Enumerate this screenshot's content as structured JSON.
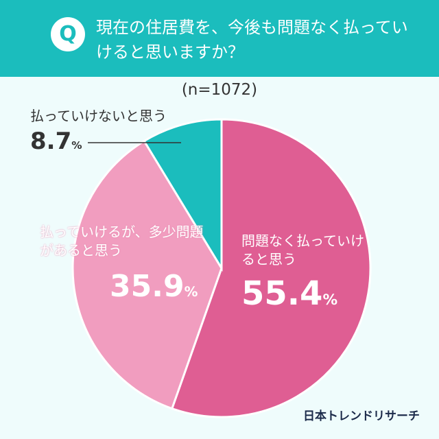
{
  "header": {
    "badge": "Q",
    "title": "現在の住居費を、今後も問題なく払っていけると思いますか？"
  },
  "sample": "(n=1072)",
  "chart_data": {
    "type": "pie",
    "title": "現在の住居費を、今後も問題なく払っていけると思いますか？",
    "subtitle": "(n=1072)",
    "start": "12 o'clock, clockwise",
    "slices": [
      {
        "label": "問題なく払っていけると思う",
        "value": 55.4,
        "display": "55.4",
        "color": "#df5e93"
      },
      {
        "label": "払っていけるが、多少問題があると思う",
        "value": 35.9,
        "display": "35.9",
        "color": "#f19dbf"
      },
      {
        "label": "払っていけないと思う",
        "value": 8.7,
        "display": "8.7",
        "color": "#1bbdbd"
      }
    ],
    "unit": "%"
  },
  "logo": "日本トレンドリサーチ"
}
